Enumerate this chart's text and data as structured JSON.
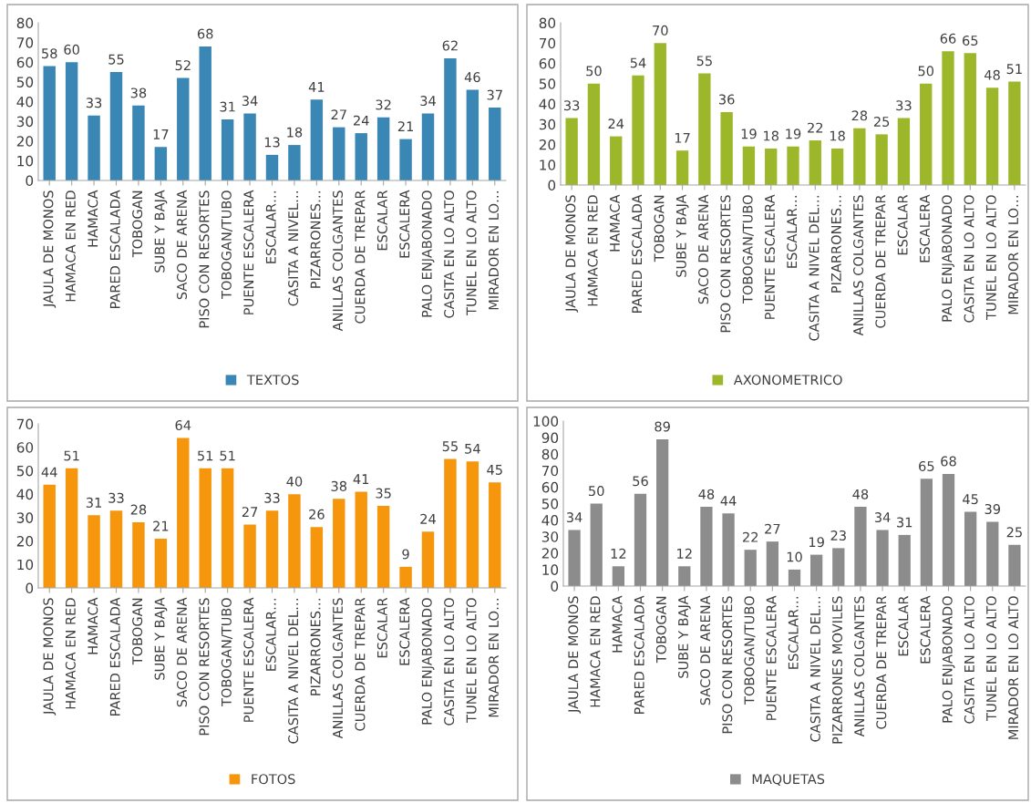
{
  "chart_data": [
    {
      "type": "bar",
      "categories": [
        "JAULA DE MONOS",
        "HAMACA EN RED",
        "HAMACA",
        "PARED ESCALADA",
        "TOBOGAN",
        "SUBE Y BAJA",
        "SACO DE ARENA",
        "PISO CON RESORTES",
        "TOBOGAN/TUBO",
        "PUENTE ESCALERA",
        "ESCALAR…",
        "CASITA A NIVEL…",
        "PIZARRONES…",
        "ANILLAS COLGANTES",
        "CUERDA DE TREPAR",
        "ESCALAR",
        "ESCALERA",
        "PALO ENJABONADO",
        "CASITA EN LO ALTO",
        "TUNEL EN LO ALTO",
        "MIRADOR EN LO…"
      ],
      "series": [
        {
          "name": "TEXTOS",
          "color": "#3a87b5",
          "values": [
            58,
            60,
            33,
            55,
            38,
            17,
            52,
            68,
            31,
            34,
            13,
            18,
            41,
            27,
            24,
            32,
            21,
            34,
            62,
            46,
            37
          ]
        }
      ],
      "ylim": [
        0,
        80
      ],
      "yticks": [
        0,
        10,
        20,
        30,
        40,
        50,
        60,
        70,
        80
      ],
      "data_labels": true,
      "legend": "bottom",
      "grid": false
    },
    {
      "type": "bar",
      "categories": [
        "JAULA DE MONOS",
        "HAMACA EN RED",
        "HAMACA",
        "PARED ESCALADA",
        "TOBOGAN",
        "SUBE Y BAJA",
        "SACO DE ARENA",
        "PISO CON RESORTES",
        "TOBOGAN/TUBO",
        "PUENTE ESCALERA",
        "ESCALAR…",
        "CASITA A NIVEL DEL…",
        "PIZARRONES…",
        "ANILLAS COLGANTES",
        "CUERDA DE TREPAR",
        "ESCALAR",
        "ESCALERA",
        "PALO ENJABONADO",
        "CASITA EN LO ALTO",
        "TUNEL EN LO ALTO",
        "MIRADOR EN LO…"
      ],
      "series": [
        {
          "name": "AXONOMETRICO",
          "color": "#9cb82a",
          "values": [
            33,
            50,
            24,
            54,
            70,
            17,
            55,
            36,
            19,
            18,
            19,
            22,
            18,
            28,
            25,
            33,
            50,
            66,
            65,
            48,
            51
          ]
        }
      ],
      "ylim": [
        0,
        80
      ],
      "yticks": [
        0,
        10,
        20,
        30,
        40,
        50,
        60,
        70,
        80
      ],
      "data_labels": true,
      "legend": "bottom",
      "grid": false
    },
    {
      "type": "bar",
      "categories": [
        "JAULA DE MONOS",
        "HAMACA EN RED",
        "HAMACA",
        "PARED ESCALADA",
        "TOBOGAN",
        "SUBE Y BAJA",
        "SACO DE ARENA",
        "PISO CON RESORTES",
        "TOBOGAN/TUBO",
        "PUENTE ESCALERA",
        "ESCALAR…",
        "CASITA A NIVEL DEL…",
        "PIZARRONES…",
        "ANILLAS COLGANTES",
        "CUERDA DE TREPAR",
        "ESCALAR",
        "ESCALERA",
        "PALO ENJABONADO",
        "CASITA EN LO ALTO",
        "TUNEL EN LO ALTO",
        "MIRADOR EN LO…"
      ],
      "series": [
        {
          "name": "FOTOS",
          "color": "#f5960c",
          "values": [
            44,
            51,
            31,
            33,
            28,
            21,
            64,
            51,
            51,
            27,
            33,
            40,
            26,
            38,
            41,
            35,
            9,
            24,
            55,
            54,
            45
          ]
        }
      ],
      "ylim": [
        0,
        70
      ],
      "yticks": [
        0,
        10,
        20,
        30,
        40,
        50,
        60,
        70
      ],
      "data_labels": true,
      "legend": "bottom",
      "grid": false
    },
    {
      "type": "bar",
      "categories": [
        "JAULA DE MONOS",
        "HAMACA EN RED",
        "HAMACA",
        "PARED ESCALADA",
        "TOBOGAN",
        "SUBE Y BAJA",
        "SACO DE ARENA",
        "PISO CON RESORTES",
        "TOBOGAN/TUBO",
        "PUENTE ESCALERA",
        "ESCALAR…",
        "CASITA A NIVEL DEL…",
        "PIZARRONES MOVILES",
        "ANILLAS COLGANTES",
        "CUERDA DE TREPAR",
        "ESCALAR",
        "ESCALERA",
        "PALO ENJABONADO",
        "CASITA EN LO ALTO",
        "TUNEL EN LO ALTO",
        "MIRADOR EN LO ALTO"
      ],
      "series": [
        {
          "name": "MAQUETAS",
          "color": "#8c8c8c",
          "values": [
            34,
            50,
            12,
            56,
            89,
            12,
            48,
            44,
            22,
            27,
            10,
            19,
            23,
            48,
            34,
            31,
            65,
            68,
            45,
            39,
            25
          ]
        }
      ],
      "ylim": [
        0,
        100
      ],
      "yticks": [
        0,
        10,
        20,
        30,
        40,
        50,
        60,
        70,
        80,
        90,
        100
      ],
      "data_labels": true,
      "legend": "bottom",
      "grid": false
    }
  ]
}
